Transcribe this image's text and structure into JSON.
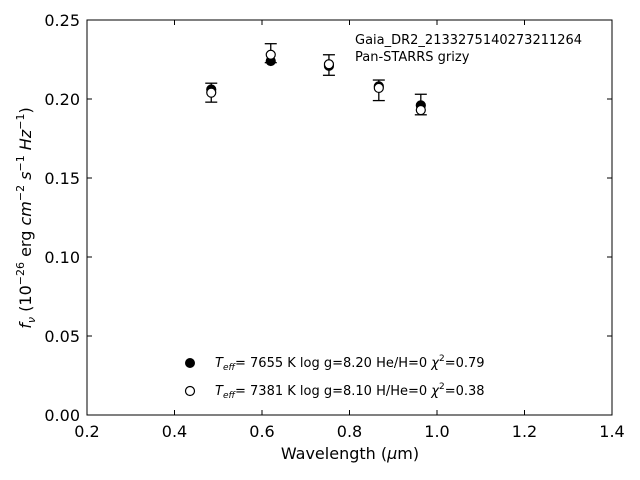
{
  "chart_data": {
    "type": "scatter",
    "annotation": [
      "Gaia_DR2_2133275140273211264",
      "Pan-STARRS grizy"
    ],
    "xlabel": {
      "prefix": "Wavelength (",
      "mu": "μ",
      "suffix": "m)"
    },
    "ylabel": {
      "sym": "f",
      "sub": "ν",
      "pre": " (10",
      "exp1": "−26",
      "mid": " erg ",
      "cm": "cm",
      "exp2": "−2",
      "s": " s",
      "exp3": "−1",
      "hz": " Hz",
      "exp4": "−1",
      "end": ")"
    },
    "xlim": [
      0.2,
      1.4
    ],
    "ylim": [
      0.0,
      0.25
    ],
    "xticks": [
      0.2,
      0.4,
      0.6,
      0.8,
      1.0,
      1.2,
      1.4
    ],
    "xtick_labels": [
      "0.2",
      "0.4",
      "0.6",
      "0.8",
      "1.0",
      "1.2",
      "1.4"
    ],
    "yticks": [
      0.0,
      0.05,
      0.1,
      0.15,
      0.2,
      0.25
    ],
    "ytick_labels": [
      "0.00",
      "0.05",
      "0.10",
      "0.15",
      "0.20",
      "0.25"
    ],
    "observed": {
      "x": [
        0.484,
        0.62,
        0.753,
        0.867,
        0.963
      ],
      "y": [
        0.204,
        0.228,
        0.223,
        0.207,
        0.195
      ],
      "yerr_low": [
        0.198,
        0.223,
        0.215,
        0.199,
        0.19
      ],
      "yerr_high": [
        0.21,
        0.235,
        0.228,
        0.212,
        0.203
      ]
    },
    "series": [
      {
        "name": "He/H=0 model",
        "marker": "filled",
        "x": [
          0.484,
          0.62,
          0.753,
          0.867,
          0.963
        ],
        "y": [
          0.206,
          0.224,
          0.221,
          0.208,
          0.196
        ]
      },
      {
        "name": "H/He=0 model",
        "marker": "open",
        "x": [
          0.484,
          0.62,
          0.753,
          0.867,
          0.963
        ],
        "y": [
          0.204,
          0.228,
          0.222,
          0.207,
          0.193
        ]
      }
    ],
    "legend": [
      {
        "marker": "filled",
        "teff_sym": "T",
        "teff_sub": "eff",
        "text": "=  7655 K  log g=8.20  He/H=0  ",
        "chi": "χ",
        "chi_exp": "2",
        "chi_val": "=0.79"
      },
      {
        "marker": "open",
        "teff_sym": "T",
        "teff_sub": "eff",
        "text": "=  7381 K  log g=8.10  H/He=0  ",
        "chi": "χ",
        "chi_exp": "2",
        "chi_val": "=0.38"
      }
    ],
    "legend_position": "lower-center",
    "grid": false
  }
}
